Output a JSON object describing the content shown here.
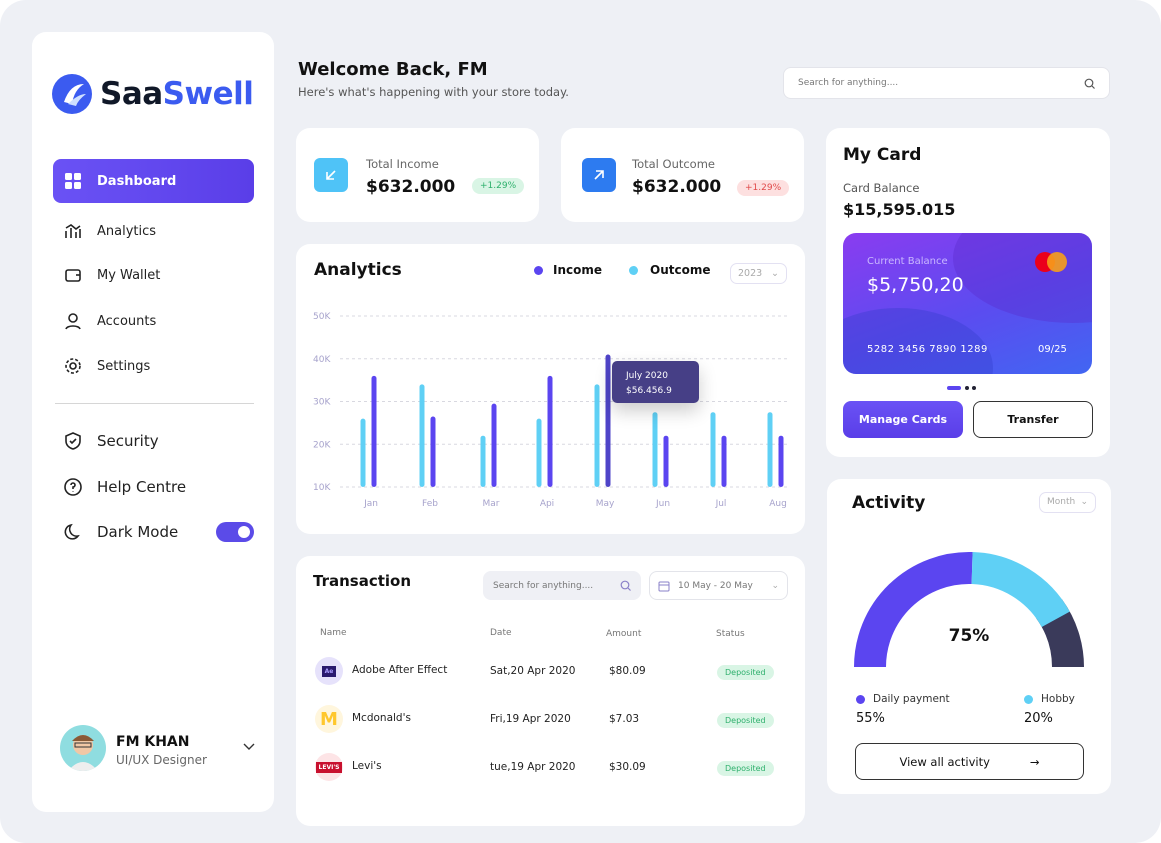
{
  "brand": {
    "name_a": "Saa",
    "name_b": "Swell"
  },
  "sidebar": {
    "items": [
      {
        "label": "Dashboard"
      },
      {
        "label": "Analytics"
      },
      {
        "label": "My Wallet"
      },
      {
        "label": "Accounts"
      },
      {
        "label": "Settings"
      }
    ],
    "secondary": [
      {
        "label": "Security"
      },
      {
        "label": "Help Centre"
      },
      {
        "label": "Dark Mode"
      }
    ],
    "dark_mode_on": true,
    "user": {
      "name": "FM KHAN",
      "role": "UI/UX Designer"
    }
  },
  "header": {
    "title": "Welcome Back, FM",
    "subtitle": "Here's what's happening with your store today.",
    "search_placeholder": "Search for anything...."
  },
  "stats": [
    {
      "label": "Total Income",
      "value": "$632.000",
      "change": "+1.29%"
    },
    {
      "label": "Total Outcome",
      "value": "$632.000",
      "change": "+1.29%"
    }
  ],
  "analytics": {
    "title": "Analytics",
    "year": "2023",
    "tooltip": {
      "title": "July 2020",
      "value": "$56.456.9"
    }
  },
  "chart_data": {
    "type": "bar",
    "title": "Analytics",
    "categories": [
      "Jan",
      "Feb",
      "Mar",
      "Api",
      "May",
      "Jun",
      "Jul",
      "Aug"
    ],
    "series": [
      {
        "name": "Outcome",
        "color": "#5fd0f5",
        "values": [
          26,
          34,
          22,
          26,
          34,
          27.5,
          27.5,
          27.5
        ]
      },
      {
        "name": "Income",
        "color": "#5b45f0",
        "values": [
          36,
          26.5,
          29.5,
          36,
          41,
          22,
          22,
          22
        ]
      }
    ],
    "yticks": [
      "10K",
      "20K",
      "30K",
      "40K",
      "50K"
    ],
    "ylim": [
      10,
      50
    ],
    "unit": "K",
    "grid": true,
    "legend": "top-right",
    "highlighted": {
      "series": "Income",
      "category": "May"
    }
  },
  "transactions": {
    "title": "Transaction",
    "search_placeholder": "Search for anything....",
    "date_range": "10 May - 20 May",
    "columns": [
      "Name",
      "Date",
      "Amount",
      "Status"
    ],
    "rows": [
      {
        "logo": "Ae",
        "name": "Adobe After Effect",
        "date": "Sat,20 Apr 2020",
        "amount": "$80.09",
        "status": "Deposited"
      },
      {
        "logo": "M",
        "name": "Mcdonald's",
        "date": "Fri,19 Apr 2020",
        "amount": "$7.03",
        "status": "Deposited"
      },
      {
        "logo": "LEVI'S",
        "name": "Levi's",
        "date": "tue,19 Apr 2020",
        "amount": "$30.09",
        "status": "Deposited"
      }
    ]
  },
  "mycard": {
    "title": "My Card",
    "balance_label": "Card Balance",
    "balance": "$15,595.015",
    "current_label": "Current Balance",
    "current": "$5,750,20",
    "number": "5282 3456 7890 1289",
    "expiry": "09/25",
    "brand": "mastercard",
    "manage": "Manage Cards",
    "transfer": "Transfer"
  },
  "activity": {
    "title": "Activity",
    "period": "Month",
    "center": "75%",
    "segments": [
      {
        "label": "Daily payment",
        "value": "55%",
        "color": "#5b45f0"
      },
      {
        "label": "Hobby",
        "value": "20%",
        "color": "#5fd0f5"
      }
    ],
    "rest_color": "#3a3a5a",
    "view_all": "View all activity"
  }
}
